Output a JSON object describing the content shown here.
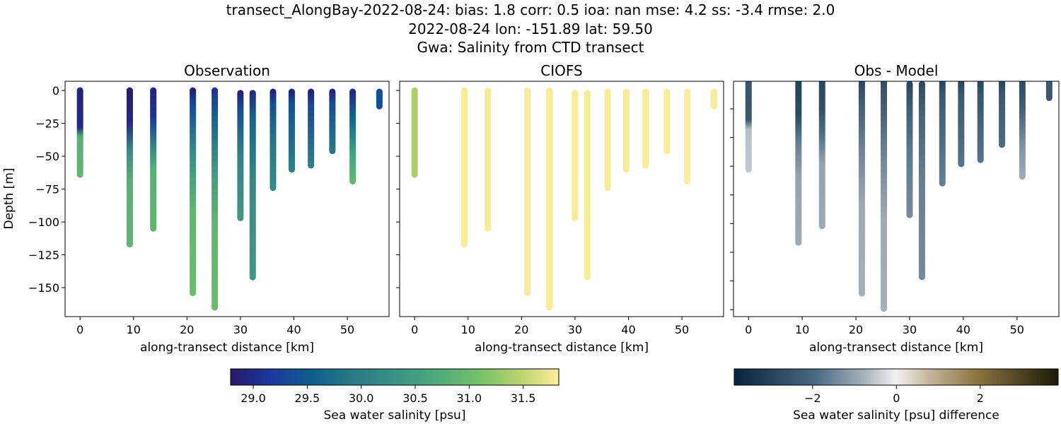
{
  "title": {
    "line1": "transect_AlongBay-2022-08-24: bias: 1.8  corr: 0.5  ioa: nan  mse: 4.2  ss: -3.4  rmse: 2.0",
    "line2": "2022-08-24 lon: -151.89 lat: 59.50",
    "line3": "Gwa: Salinity from CTD transect"
  },
  "chart_data": [
    {
      "type": "scatter",
      "title": "Observation",
      "xlabel": "along-transect distance [km]",
      "ylabel": "Depth [m]",
      "xlim": [
        -2.8,
        57.8
      ],
      "ylim": [
        -172,
        7
      ],
      "xticks": [
        0,
        10,
        20,
        30,
        40,
        50
      ],
      "yticks": [
        0,
        -25,
        -50,
        -75,
        -100,
        -125,
        -150
      ],
      "colormap": "haline",
      "casts": [
        {
          "km": 0,
          "profile": [
            [
              0,
              28.9
            ],
            [
              -28,
              29.0
            ],
            [
              -35,
              30.8
            ],
            [
              -64,
              30.9
            ]
          ]
        },
        {
          "km": 9.3,
          "profile": [
            [
              0,
              28.8
            ],
            [
              -25,
              29.0
            ],
            [
              -45,
              30.2
            ],
            [
              -70,
              30.8
            ],
            [
              -117,
              30.9
            ]
          ]
        },
        {
          "km": 13.7,
          "profile": [
            [
              0,
              28.9
            ],
            [
              -20,
              29.1
            ],
            [
              -40,
              30.0
            ],
            [
              -60,
              30.8
            ],
            [
              -105,
              30.9
            ]
          ]
        },
        {
          "km": 21.1,
          "profile": [
            [
              0,
              28.9
            ],
            [
              -10,
              29.3
            ],
            [
              -50,
              30.3
            ],
            [
              -90,
              30.9
            ],
            [
              -154,
              31.0
            ]
          ]
        },
        {
          "km": 25.2,
          "profile": [
            [
              0,
              29.1
            ],
            [
              -20,
              29.6
            ],
            [
              -60,
              30.4
            ],
            [
              -100,
              30.9
            ],
            [
              -165,
              31.0
            ]
          ]
        },
        {
          "km": 30.0,
          "profile": [
            [
              -2,
              28.9
            ],
            [
              -15,
              29.4
            ],
            [
              -50,
              30.1
            ],
            [
              -97,
              30.4
            ]
          ]
        },
        {
          "km": 32.3,
          "profile": [
            [
              -2,
              29.0
            ],
            [
              -20,
              29.6
            ],
            [
              -70,
              30.2
            ],
            [
              -142,
              30.4
            ]
          ]
        },
        {
          "km": 36.1,
          "profile": [
            [
              -1,
              28.9
            ],
            [
              -10,
              29.4
            ],
            [
              -40,
              29.9
            ],
            [
              -74,
              30.2
            ]
          ]
        },
        {
          "km": 39.6,
          "profile": [
            [
              -1,
              28.9
            ],
            [
              -10,
              29.4
            ],
            [
              -60,
              30.0
            ]
          ]
        },
        {
          "km": 43.2,
          "profile": [
            [
              -1,
              28.9
            ],
            [
              -10,
              29.3
            ],
            [
              -57,
              30.0
            ]
          ]
        },
        {
          "km": 47.2,
          "profile": [
            [
              -1,
              28.9
            ],
            [
              -10,
              29.4
            ],
            [
              -46,
              29.9
            ]
          ]
        },
        {
          "km": 51.0,
          "profile": [
            [
              -1,
              29.0
            ],
            [
              -20,
              29.6
            ],
            [
              -50,
              30.6
            ],
            [
              -69,
              30.9
            ]
          ]
        },
        {
          "km": 56.0,
          "profile": [
            [
              -1,
              29.4
            ],
            [
              -12,
              29.4
            ]
          ]
        }
      ]
    },
    {
      "type": "scatter",
      "title": "CIOFS",
      "xlabel": "along-transect distance [km]",
      "xlim": [
        -2.8,
        57.8
      ],
      "ylim": [
        -172,
        7
      ],
      "xticks": [
        0,
        10,
        20,
        30,
        40,
        50
      ],
      "colormap": "haline",
      "model_values": [
        31.4,
        31.8,
        31.8,
        31.8,
        31.8,
        31.8,
        31.8,
        31.8,
        31.8,
        31.8,
        31.8,
        31.8,
        31.8
      ]
    },
    {
      "type": "scatter",
      "title": "Obs - Model",
      "xlabel": "along-transect distance [km]",
      "xlim": [
        -2.8,
        57.8
      ],
      "xticks": [
        0,
        10,
        20,
        30,
        40,
        50
      ],
      "colormap": "diff"
    }
  ],
  "colorbars": [
    {
      "label": "Sea water salinity [psu]",
      "range": [
        28.79,
        31.83
      ],
      "ticks": [
        "29.0",
        "29.5",
        "30.0",
        "30.5",
        "31.0",
        "31.5"
      ],
      "tick_values": [
        29.0,
        29.5,
        30.0,
        30.5,
        31.0,
        31.5
      ]
    },
    {
      "label": "Sea water salinity [psu] difference",
      "range": [
        -3.87,
        3.86
      ],
      "ticks": [
        "−2",
        "0",
        "2"
      ],
      "tick_values": [
        -2,
        0,
        2
      ]
    }
  ]
}
